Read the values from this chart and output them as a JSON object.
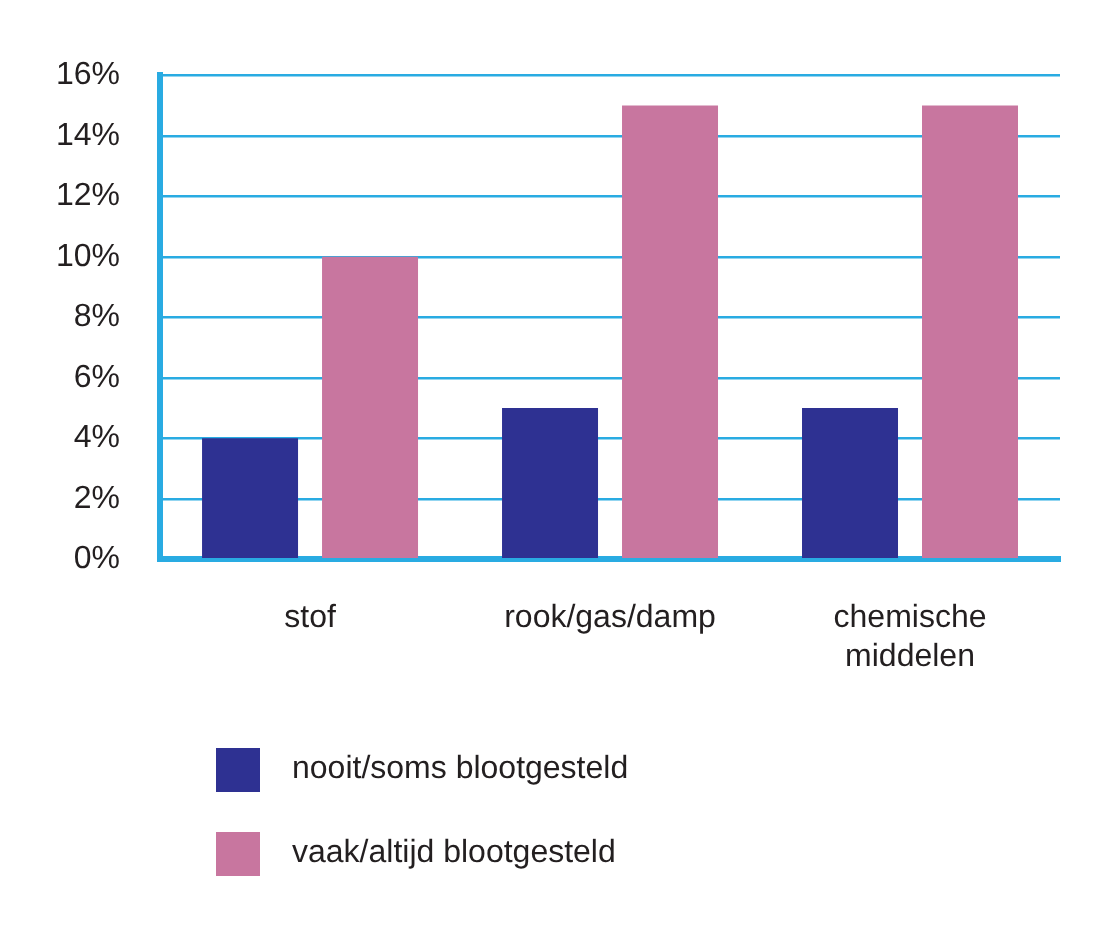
{
  "chart_data": {
    "type": "bar",
    "categories": [
      "stof",
      "rook/gas/damp",
      "chemische middelen"
    ],
    "series": [
      {
        "name": "nooit/soms blootgesteld",
        "color": "#2e3192",
        "values": [
          4,
          5,
          5
        ]
      },
      {
        "name": "vaak/altijd blootgesteld",
        "color": "#c8769f",
        "values": [
          10,
          15,
          15
        ]
      }
    ],
    "ylim": [
      0,
      16
    ],
    "yticks": [
      {
        "value": 0,
        "label": "0%"
      },
      {
        "value": 2,
        "label": "2%"
      },
      {
        "value": 4,
        "label": "4%"
      },
      {
        "value": 6,
        "label": "6%"
      },
      {
        "value": 8,
        "label": "8%"
      },
      {
        "value": 10,
        "label": "10%"
      },
      {
        "value": 12,
        "label": "12%"
      },
      {
        "value": 14,
        "label": "14%"
      },
      {
        "value": 16,
        "label": "16%"
      }
    ],
    "grid": "y",
    "legend": "bottom"
  }
}
